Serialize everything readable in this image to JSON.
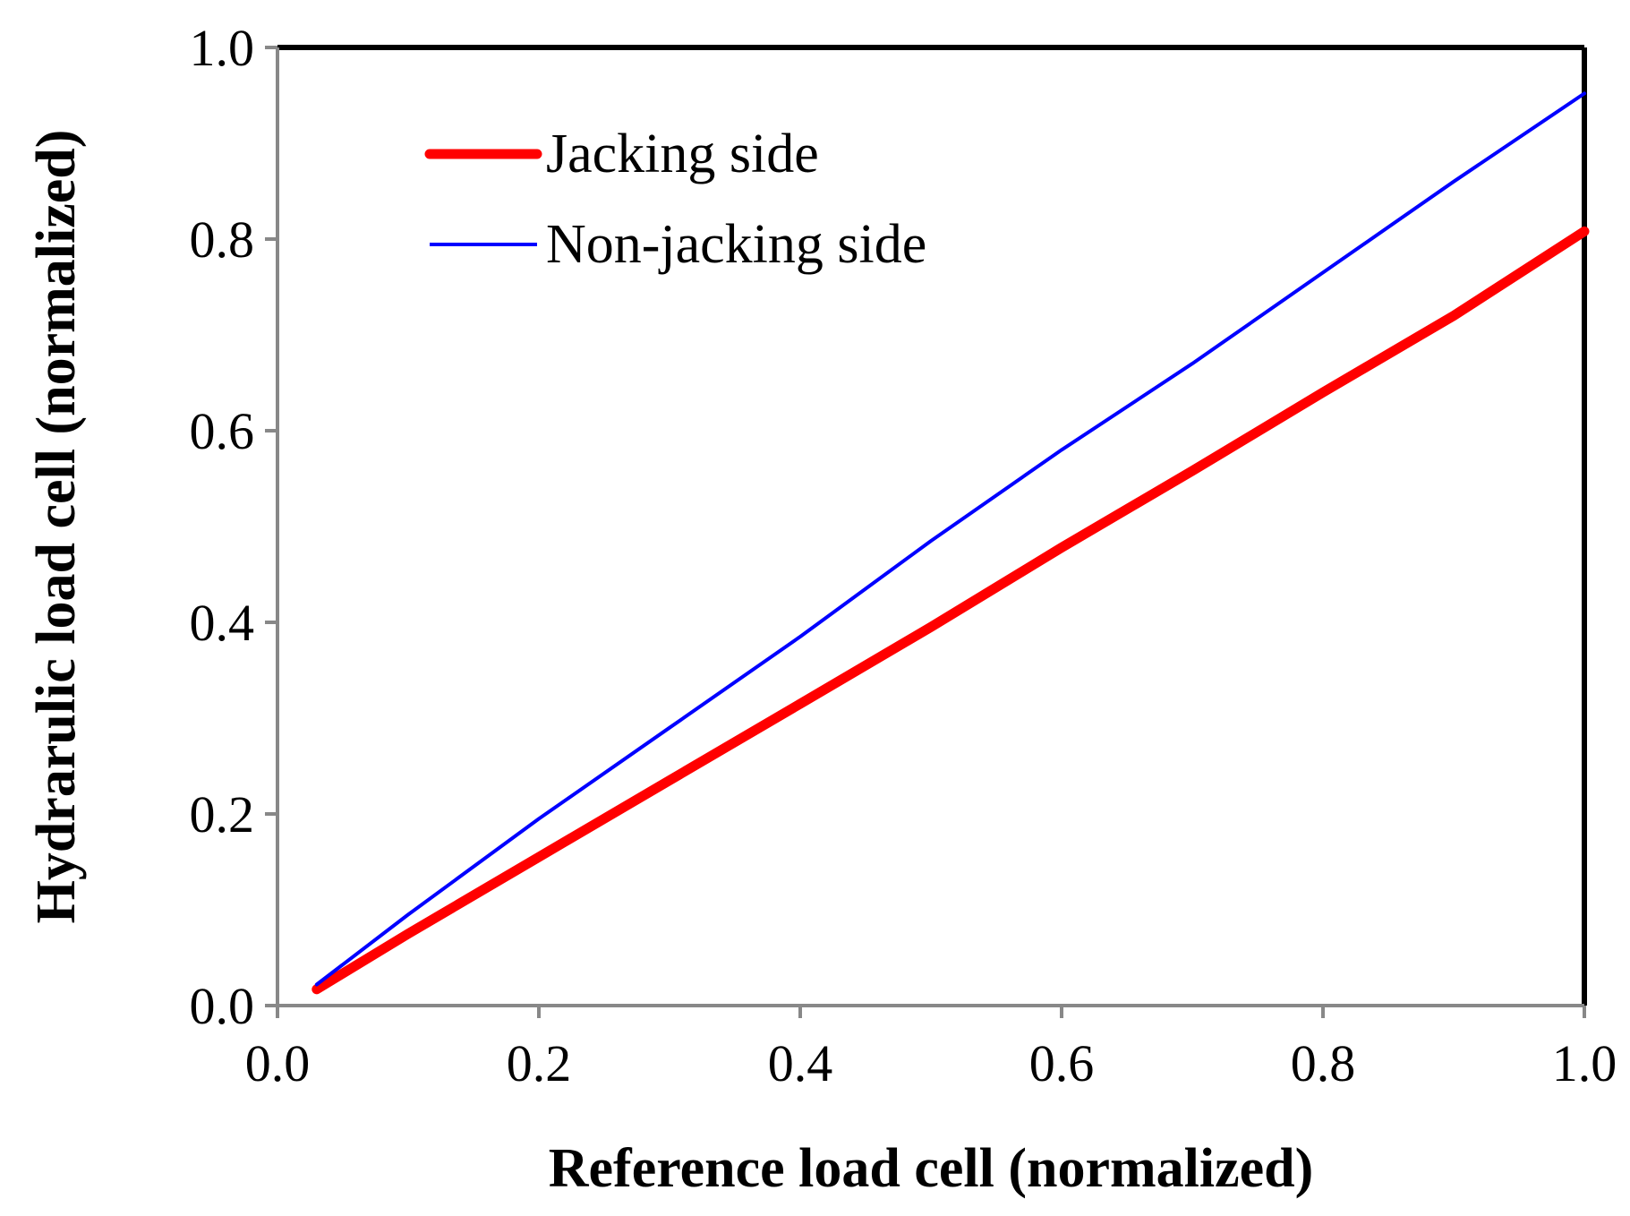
{
  "chart_data": {
    "type": "line",
    "title": "",
    "xlabel": "Reference load cell (normalized)",
    "ylabel": "Hydrarulic load cell (normalized)",
    "xlim": [
      0.0,
      1.0
    ],
    "ylim": [
      0.0,
      1.0
    ],
    "xticks": [
      "0.0",
      "0.2",
      "0.4",
      "0.6",
      "0.8",
      "1.0"
    ],
    "yticks": [
      "0.0",
      "0.2",
      "0.4",
      "0.6",
      "0.8",
      "1.0"
    ],
    "grid": false,
    "legend_position": "top-left",
    "series": [
      {
        "name": "Jacking side",
        "color": "#ff0000",
        "x": [
          0.03,
          0.1,
          0.2,
          0.3,
          0.4,
          0.5,
          0.6,
          0.7,
          0.8,
          0.9,
          1.0
        ],
        "y": [
          0.017,
          0.075,
          0.155,
          0.235,
          0.315,
          0.395,
          0.478,
          0.558,
          0.64,
          0.72,
          0.808
        ]
      },
      {
        "name": "Non-jacking side",
        "color": "#0000ff",
        "x": [
          0.03,
          0.1,
          0.2,
          0.3,
          0.4,
          0.5,
          0.6,
          0.7,
          0.8,
          0.9,
          1.0
        ],
        "y": [
          0.022,
          0.095,
          0.195,
          0.29,
          0.385,
          0.485,
          0.58,
          0.67,
          0.765,
          0.86,
          0.952
        ]
      }
    ]
  }
}
